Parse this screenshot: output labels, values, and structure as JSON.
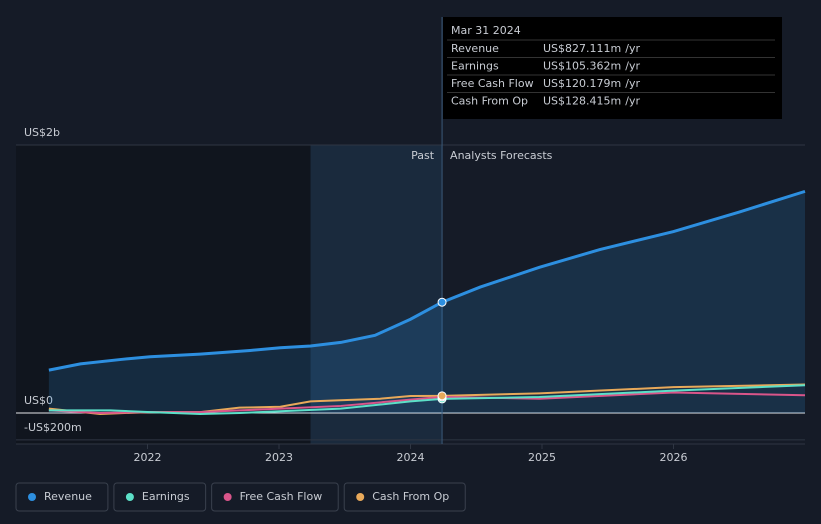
{
  "chart_data": {
    "type": "line",
    "xlim": [
      2021,
      2027
    ],
    "xticks": [
      2022,
      2023,
      2024,
      2025,
      2026
    ],
    "ylim": [
      -231,
      2000
    ],
    "yticks": [
      {
        "value": 2000,
        "label": "US$2b"
      },
      {
        "value": 0,
        "label": "US$0"
      },
      {
        "value": -200,
        "label": "-US$200m"
      }
    ],
    "annotations": {
      "past": "Past",
      "forecast": "Analysts Forecasts",
      "divider": 2024.24
    },
    "tooltip": {
      "title": "Mar 31 2024",
      "unit": "/yr"
    },
    "series": [
      {
        "name": "Revenue",
        "color": "#2d8fe0",
        "tooltip_label": "US$827.111m",
        "x": [
          2021.25,
          2021.49,
          2021.8,
          2022.02,
          2022.4,
          2022.78,
          2023.01,
          2023.24,
          2023.47,
          2023.73,
          2024.0,
          2024.24,
          2024.53,
          2024.98,
          2025.44,
          2026.0,
          2026.5,
          2027.0
        ],
        "values": [
          320,
          367,
          400,
          420,
          440,
          467,
          487,
          500,
          527,
          580,
          700,
          827.111,
          940,
          1087,
          1220,
          1354,
          1500,
          1654
        ]
      },
      {
        "name": "Earnings",
        "color": "#5ce0c8",
        "tooltip_label": "US$105.362m",
        "x": [
          2021.25,
          2021.72,
          2022.02,
          2022.4,
          2022.7,
          2023.01,
          2023.47,
          2024.0,
          2024.24,
          2024.98,
          2026.0,
          2027.0
        ],
        "values": [
          20,
          20,
          7,
          -7,
          0,
          13,
          33,
          87,
          105.362,
          120,
          167,
          207
        ]
      },
      {
        "name": "Free Cash Flow",
        "color": "#d9558a",
        "tooltip_label": "US$120.179m",
        "x": [
          2021.25,
          2021.64,
          2022.02,
          2022.4,
          2022.7,
          2023.01,
          2023.47,
          2024.0,
          2024.24,
          2024.98,
          2026.0,
          2027.0
        ],
        "values": [
          20,
          0,
          7,
          7,
          20,
          33,
          53,
          100,
          120.179,
          107,
          153,
          133
        ]
      },
      {
        "name": "Cash From Op",
        "color": "#e8a95a",
        "tooltip_label": "US$128.415m",
        "x": [
          2021.25,
          2021.64,
          2022.02,
          2022.4,
          2022.7,
          2023.01,
          2023.24,
          2023.77,
          2024.0,
          2024.24,
          2024.98,
          2026.0,
          2027.0
        ],
        "values": [
          33,
          -7,
          7,
          7,
          40,
          47,
          87,
          107,
          127,
          128.415,
          147,
          193,
          213
        ]
      }
    ]
  }
}
